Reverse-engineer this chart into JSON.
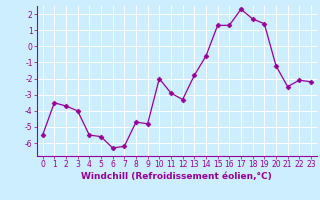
{
  "x": [
    0,
    1,
    2,
    3,
    4,
    5,
    6,
    7,
    8,
    9,
    10,
    11,
    12,
    13,
    14,
    15,
    16,
    17,
    18,
    19,
    20,
    21,
    22,
    23
  ],
  "y": [
    -5.5,
    -3.5,
    -3.7,
    -4.0,
    -5.5,
    -5.6,
    -6.3,
    -6.2,
    -4.7,
    -4.8,
    -2.0,
    -2.9,
    -3.3,
    -1.8,
    -0.6,
    1.3,
    1.3,
    2.3,
    1.7,
    1.4,
    -1.2,
    -2.5,
    -2.1,
    -2.2
  ],
  "line_color": "#990099",
  "marker": "D",
  "marker_size": 2.5,
  "bg_color": "#cceeff",
  "grid_color": "#ffffff",
  "xlabel": "Windchill (Refroidissement éolien,°C)",
  "ylim": [
    -6.8,
    2.5
  ],
  "xlim": [
    -0.5,
    23.5
  ],
  "yticks": [
    -6,
    -5,
    -4,
    -3,
    -2,
    -1,
    0,
    1,
    2
  ],
  "xticks": [
    0,
    1,
    2,
    3,
    4,
    5,
    6,
    7,
    8,
    9,
    10,
    11,
    12,
    13,
    14,
    15,
    16,
    17,
    18,
    19,
    20,
    21,
    22,
    23
  ],
  "tick_label_fontsize": 5.5,
  "xlabel_fontsize": 6.5
}
